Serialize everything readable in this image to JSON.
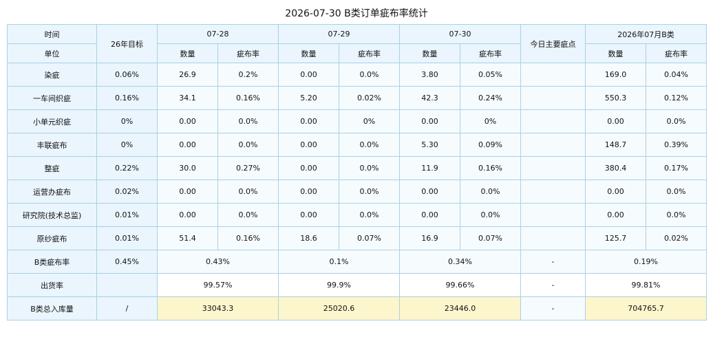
{
  "title": "2026-07-30 B类订单疵布率统计",
  "header": {
    "time": "时间",
    "unit": "单位",
    "target": "26年目标",
    "dates": [
      "07-28",
      "07-29",
      "07-30"
    ],
    "main_defect": "今日主要疵点",
    "month": "2026年07月B类",
    "qty": "数量",
    "rate": "疵布率"
  },
  "rows": [
    {
      "label": "染疵",
      "target": "0.06%",
      "cells": [
        [
          "26.9",
          "0.2%",
          true
        ],
        [
          "0.00",
          "0.0%",
          false
        ],
        [
          "3.80",
          "0.05%",
          false
        ]
      ],
      "main": "",
      "month": [
        "169.0",
        "0.04%",
        false
      ]
    },
    {
      "label": "一车间织疵",
      "target": "0.16%",
      "cells": [
        [
          "34.1",
          "0.16%",
          false
        ],
        [
          "5.20",
          "0.02%",
          false
        ],
        [
          "42.3",
          "0.24%",
          true
        ]
      ],
      "main": "",
      "month": [
        "550.3",
        "0.12%",
        false
      ]
    },
    {
      "label": "小单元织疵",
      "target": "0%",
      "cells": [
        [
          "0.00",
          "0.0%",
          false
        ],
        [
          "0.00",
          "0%",
          false
        ],
        [
          "0.00",
          "0%",
          false
        ]
      ],
      "main": "",
      "month": [
        "0.00",
        "0.0%",
        false
      ]
    },
    {
      "label": "丰联疵布",
      "target": "0%",
      "cells": [
        [
          "0.00",
          "0.0%",
          false
        ],
        [
          "0.00",
          "0.0%",
          false
        ],
        [
          "5.30",
          "0.09%",
          true
        ]
      ],
      "main": "",
      "month": [
        "148.7",
        "0.39%",
        true
      ]
    },
    {
      "label": "整疵",
      "target": "0.22%",
      "cells": [
        [
          "30.0",
          "0.27%",
          true
        ],
        [
          "0.00",
          "0.0%",
          false
        ],
        [
          "11.9",
          "0.16%",
          false
        ]
      ],
      "main": "",
      "month": [
        "380.4",
        "0.17%",
        false
      ]
    },
    {
      "label": "运营办疵布",
      "target": "0.02%",
      "cells": [
        [
          "0.00",
          "0.0%",
          false
        ],
        [
          "0.00",
          "0.0%",
          false
        ],
        [
          "0.00",
          "0.0%",
          false
        ]
      ],
      "main": "",
      "month": [
        "0.00",
        "0.0%",
        false
      ]
    },
    {
      "label": "研究院(技术总监)",
      "target": "0.01%",
      "cells": [
        [
          "0.00",
          "0.0%",
          false
        ],
        [
          "0.00",
          "0.0%",
          false
        ],
        [
          "0.00",
          "0.0%",
          false
        ]
      ],
      "main": "",
      "month": [
        "0.00",
        "0.0%",
        false
      ]
    },
    {
      "label": "原纱疵布",
      "target": "0.01%",
      "cells": [
        [
          "51.4",
          "0.16%",
          true
        ],
        [
          "18.6",
          "0.07%",
          true
        ],
        [
          "16.9",
          "0.07%",
          true
        ]
      ],
      "main": "",
      "month": [
        "125.7",
        "0.02%",
        true
      ]
    }
  ],
  "summary": [
    {
      "label": "B类疵布率",
      "target": "0.45%",
      "values": [
        "0.43%",
        "0.1%",
        "0.34%"
      ],
      "main": "-",
      "month": "0.19%",
      "style": "light"
    },
    {
      "label": "出货率",
      "target": "",
      "values": [
        "99.57%",
        "99.9%",
        "99.66%"
      ],
      "main": "-",
      "month": "99.81%",
      "style": "white"
    },
    {
      "label": "B类总入库量",
      "target": "/",
      "values": [
        "33043.3",
        "25020.6",
        "23446.0"
      ],
      "main": "-",
      "month": "704765.7",
      "style": "stock"
    }
  ]
}
